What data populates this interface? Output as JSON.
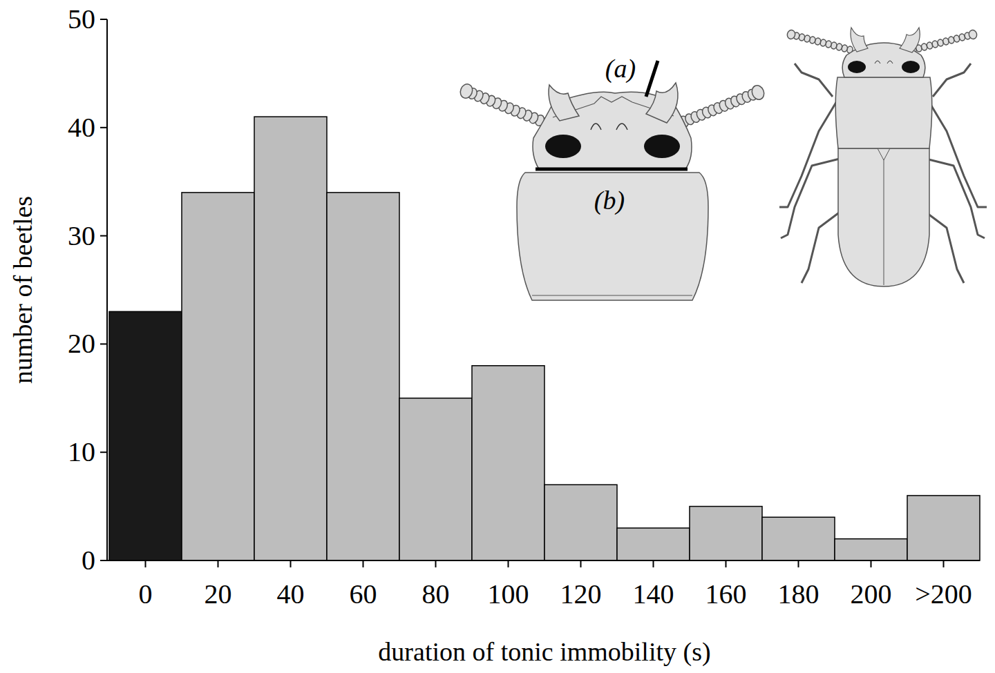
{
  "chart_data": {
    "type": "histogram",
    "x_label": "duration of tonic immobility (s)",
    "y_label": "number of beetles",
    "bins": [
      -10,
      10,
      30,
      50,
      70,
      90,
      110,
      130,
      150,
      170,
      190,
      210,
      230
    ],
    "values": [
      23,
      34,
      41,
      34,
      15,
      18,
      7,
      3,
      5,
      4,
      2,
      6
    ],
    "colors": [
      "#1a1a1a",
      "#bdbdbd",
      "#bdbdbd",
      "#bdbdbd",
      "#bdbdbd",
      "#bdbdbd",
      "#bdbdbd",
      "#bdbdbd",
      "#bdbdbd",
      "#bdbdbd",
      "#bdbdbd",
      "#bdbdbd"
    ],
    "xlim": [
      -10,
      230
    ],
    "ylim": [
      0,
      50
    ],
    "xticks": [
      0,
      20,
      40,
      60,
      80,
      100,
      120,
      140,
      160,
      180,
      200,
      {
        "value": 220,
        "label": ">200"
      }
    ],
    "yticks": [
      0,
      10,
      20,
      30,
      40,
      50
    ],
    "grid": false,
    "annotations": [
      "(a)",
      "(b)"
    ]
  }
}
